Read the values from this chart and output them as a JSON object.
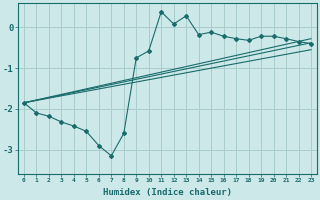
{
  "title": "",
  "xlabel": "Humidex (Indice chaleur)",
  "ylabel": "",
  "background_color": "#cce8e8",
  "grid_color": "#aacccc",
  "line_color": "#1a6b6b",
  "xlim": [
    -0.5,
    23.5
  ],
  "ylim": [
    -3.6,
    0.6
  ],
  "xticks": [
    0,
    1,
    2,
    3,
    4,
    5,
    6,
    7,
    8,
    9,
    10,
    11,
    12,
    13,
    14,
    15,
    16,
    17,
    18,
    19,
    20,
    21,
    22,
    23
  ],
  "yticks": [
    -3,
    -2,
    -1,
    0
  ],
  "main_x": [
    0,
    1,
    2,
    3,
    4,
    5,
    6,
    7,
    8,
    9,
    10,
    11,
    12,
    13,
    14,
    15,
    16,
    17,
    18,
    19,
    20,
    21,
    22,
    23
  ],
  "main_y": [
    -1.85,
    -2.1,
    -2.18,
    -2.32,
    -2.42,
    -2.55,
    -2.9,
    -3.15,
    -2.6,
    -0.75,
    -0.58,
    0.38,
    0.08,
    0.28,
    -0.18,
    -0.12,
    -0.22,
    -0.28,
    -0.32,
    -0.22,
    -0.22,
    -0.28,
    -0.35,
    -0.4
  ],
  "line1_x": [
    0,
    23
  ],
  "line1_y": [
    -1.85,
    -0.38
  ],
  "line2_x": [
    0,
    23
  ],
  "line2_y": [
    -1.85,
    -0.28
  ],
  "line3_x": [
    0,
    23
  ],
  "line3_y": [
    -1.85,
    -0.55
  ]
}
